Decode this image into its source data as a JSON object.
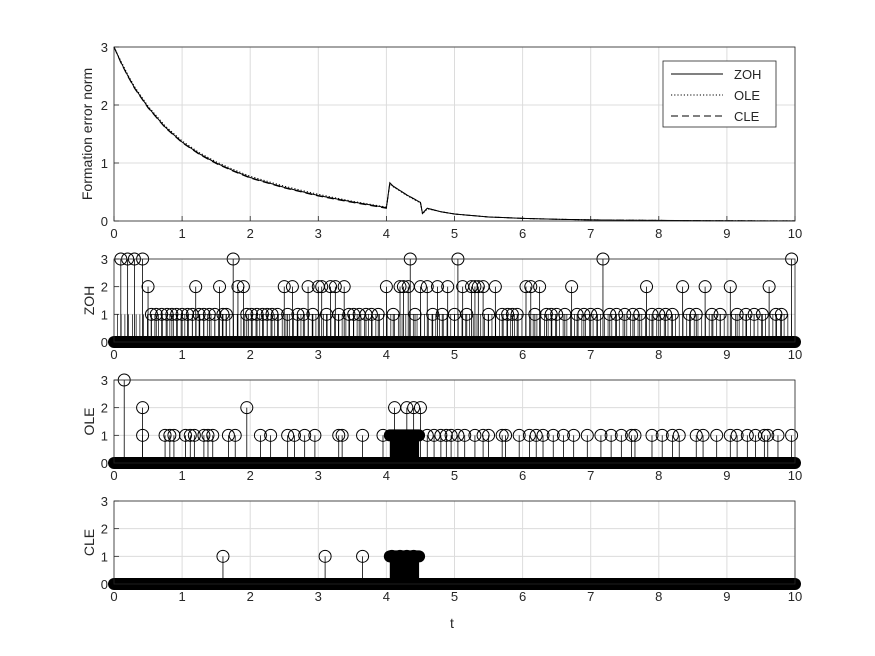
{
  "figure": {
    "xlabel": "t",
    "colors": {
      "axis": "#262626",
      "grid": "#dcdcdc",
      "line": "#000000",
      "background": "#ffffff"
    }
  },
  "chart_data": [
    {
      "type": "line",
      "ylabel": "Formation error norm",
      "xlim": [
        0,
        10
      ],
      "ylim": [
        0,
        3
      ],
      "xticks": [
        "0",
        "1",
        "2",
        "3",
        "4",
        "5",
        "6",
        "7",
        "8",
        "9",
        "10"
      ],
      "yticks": [
        "0",
        "1",
        "2",
        "3"
      ],
      "grid": true,
      "legend_position": "top-right",
      "series": [
        {
          "name": "ZOH",
          "style": "solid",
          "x": [
            0,
            0.1,
            0.2,
            0.3,
            0.5,
            0.75,
            1,
            1.25,
            1.5,
            1.75,
            2,
            2.5,
            3,
            3.5,
            4,
            4.05,
            4.1,
            4.3,
            4.5,
            4.53,
            4.6,
            4.8,
            5,
            5.5,
            6,
            6.5,
            7,
            7.5,
            8,
            8.5,
            9,
            9.5,
            10
          ],
          "y": [
            3,
            2.74,
            2.51,
            2.3,
            1.96,
            1.62,
            1.36,
            1.16,
            1.0,
            0.87,
            0.75,
            0.58,
            0.44,
            0.33,
            0.23,
            0.66,
            0.6,
            0.45,
            0.32,
            0.13,
            0.22,
            0.16,
            0.12,
            0.07,
            0.045,
            0.03,
            0.02,
            0.014,
            0.01,
            0.006,
            0.004,
            0.003,
            0.002
          ]
        },
        {
          "name": "OLE",
          "style": "dotted",
          "x": [
            0,
            0.1,
            0.2,
            0.3,
            0.5,
            0.75,
            1,
            1.25,
            1.5,
            1.75,
            2,
            2.5,
            3,
            3.5,
            4,
            4.05,
            4.1,
            4.3,
            4.5,
            4.53,
            4.6,
            4.8,
            5,
            5.5,
            6,
            6.5,
            7,
            7.5,
            8,
            8.5,
            9,
            9.5,
            10
          ],
          "y": [
            3,
            2.76,
            2.53,
            2.32,
            1.98,
            1.64,
            1.38,
            1.18,
            1.02,
            0.89,
            0.77,
            0.6,
            0.46,
            0.34,
            0.24,
            0.64,
            0.59,
            0.44,
            0.31,
            0.12,
            0.21,
            0.16,
            0.12,
            0.07,
            0.045,
            0.03,
            0.02,
            0.014,
            0.01,
            0.006,
            0.004,
            0.003,
            0.002
          ]
        },
        {
          "name": "CLE",
          "style": "dashed",
          "x": [
            0,
            0.1,
            0.2,
            0.3,
            0.5,
            0.75,
            1,
            1.25,
            1.5,
            1.75,
            2,
            2.5,
            3,
            3.5,
            4,
            4.05,
            4.1,
            4.3,
            4.5,
            4.53,
            4.6,
            4.8,
            5,
            5.5,
            6,
            6.5,
            7,
            7.5,
            8,
            8.5,
            9,
            9.5,
            10
          ],
          "y": [
            3,
            2.73,
            2.5,
            2.29,
            1.95,
            1.61,
            1.35,
            1.15,
            0.99,
            0.86,
            0.74,
            0.57,
            0.43,
            0.32,
            0.22,
            0.65,
            0.6,
            0.45,
            0.32,
            0.13,
            0.22,
            0.16,
            0.12,
            0.07,
            0.045,
            0.03,
            0.02,
            0.014,
            0.01,
            0.006,
            0.004,
            0.003,
            0.002
          ]
        }
      ]
    },
    {
      "type": "scatter",
      "ylabel": "ZOH",
      "xlim": [
        0,
        10
      ],
      "ylim": [
        0,
        3
      ],
      "xticks": [
        "0",
        "1",
        "2",
        "3",
        "4",
        "5",
        "6",
        "7",
        "8",
        "9",
        "10"
      ],
      "yticks": [
        "0",
        "1",
        "2",
        "3"
      ],
      "grid": true,
      "marker": "stem-circle",
      "baseline_value": 0,
      "baseline_range": [
        0,
        10
      ],
      "baseline_block": [
        4.02,
        4.55
      ],
      "points": [
        [
          0.1,
          3
        ],
        [
          0.2,
          3
        ],
        [
          0.3,
          3
        ],
        [
          0.42,
          3
        ],
        [
          0.5,
          2
        ],
        [
          0.55,
          1
        ],
        [
          0.62,
          1
        ],
        [
          0.7,
          1
        ],
        [
          0.78,
          1
        ],
        [
          0.85,
          1
        ],
        [
          0.92,
          1
        ],
        [
          1.0,
          1
        ],
        [
          1.08,
          1
        ],
        [
          1.15,
          1
        ],
        [
          1.2,
          2
        ],
        [
          1.25,
          1
        ],
        [
          1.32,
          1
        ],
        [
          1.4,
          1
        ],
        [
          1.48,
          1
        ],
        [
          1.55,
          2
        ],
        [
          1.6,
          1
        ],
        [
          1.65,
          1
        ],
        [
          1.75,
          3
        ],
        [
          1.82,
          2
        ],
        [
          1.9,
          2
        ],
        [
          1.95,
          1
        ],
        [
          2.02,
          1
        ],
        [
          2.1,
          1
        ],
        [
          2.18,
          1
        ],
        [
          2.25,
          1
        ],
        [
          2.32,
          1
        ],
        [
          2.4,
          1
        ],
        [
          2.5,
          2
        ],
        [
          2.55,
          1
        ],
        [
          2.62,
          2
        ],
        [
          2.7,
          1
        ],
        [
          2.78,
          1
        ],
        [
          2.85,
          2
        ],
        [
          2.92,
          1
        ],
        [
          3.0,
          2
        ],
        [
          3.05,
          2
        ],
        [
          3.12,
          1
        ],
        [
          3.18,
          2
        ],
        [
          3.25,
          2
        ],
        [
          3.3,
          1
        ],
        [
          3.38,
          2
        ],
        [
          3.45,
          1
        ],
        [
          3.52,
          1
        ],
        [
          3.6,
          1
        ],
        [
          3.7,
          1
        ],
        [
          3.78,
          1
        ],
        [
          3.88,
          1
        ],
        [
          4.0,
          2
        ],
        [
          4.1,
          1
        ],
        [
          4.2,
          2
        ],
        [
          4.25,
          2
        ],
        [
          4.32,
          2
        ],
        [
          4.35,
          3
        ],
        [
          4.42,
          1
        ],
        [
          4.5,
          2
        ],
        [
          4.6,
          2
        ],
        [
          4.68,
          1
        ],
        [
          4.75,
          2
        ],
        [
          4.82,
          1
        ],
        [
          4.9,
          2
        ],
        [
          5.0,
          1
        ],
        [
          5.05,
          3
        ],
        [
          5.12,
          2
        ],
        [
          5.18,
          1
        ],
        [
          5.25,
          2
        ],
        [
          5.3,
          2
        ],
        [
          5.35,
          2
        ],
        [
          5.42,
          2
        ],
        [
          5.5,
          1
        ],
        [
          5.6,
          2
        ],
        [
          5.7,
          1
        ],
        [
          5.78,
          1
        ],
        [
          5.85,
          1
        ],
        [
          5.92,
          1
        ],
        [
          6.05,
          2
        ],
        [
          6.12,
          2
        ],
        [
          6.18,
          1
        ],
        [
          6.25,
          2
        ],
        [
          6.35,
          1
        ],
        [
          6.42,
          1
        ],
        [
          6.5,
          1
        ],
        [
          6.62,
          1
        ],
        [
          6.72,
          2
        ],
        [
          6.8,
          1
        ],
        [
          6.9,
          1
        ],
        [
          7.0,
          1
        ],
        [
          7.1,
          1
        ],
        [
          7.18,
          3
        ],
        [
          7.28,
          1
        ],
        [
          7.38,
          1
        ],
        [
          7.5,
          1
        ],
        [
          7.62,
          1
        ],
        [
          7.72,
          1
        ],
        [
          7.82,
          2
        ],
        [
          7.9,
          1
        ],
        [
          8.0,
          1
        ],
        [
          8.1,
          1
        ],
        [
          8.2,
          1
        ],
        [
          8.35,
          2
        ],
        [
          8.45,
          1
        ],
        [
          8.55,
          1
        ],
        [
          8.68,
          2
        ],
        [
          8.78,
          1
        ],
        [
          8.9,
          1
        ],
        [
          9.05,
          2
        ],
        [
          9.15,
          1
        ],
        [
          9.28,
          1
        ],
        [
          9.4,
          1
        ],
        [
          9.52,
          1
        ],
        [
          9.62,
          2
        ],
        [
          9.72,
          1
        ],
        [
          9.8,
          1
        ],
        [
          9.95,
          3
        ]
      ]
    },
    {
      "type": "scatter",
      "ylabel": "OLE",
      "xlim": [
        0,
        10
      ],
      "ylim": [
        0,
        3
      ],
      "xticks": [
        "0",
        "1",
        "2",
        "3",
        "4",
        "5",
        "6",
        "7",
        "8",
        "9",
        "10"
      ],
      "yticks": [
        "0",
        "1",
        "2",
        "3"
      ],
      "grid": true,
      "marker": "stem-circle",
      "baseline_value": 0,
      "baseline_range": [
        0,
        10
      ],
      "block": {
        "x": [
          4.05,
          4.48
        ],
        "y": 1
      },
      "points": [
        [
          0.15,
          3
        ],
        [
          0.42,
          2
        ],
        [
          0.42,
          1
        ],
        [
          0.75,
          1
        ],
        [
          0.82,
          1
        ],
        [
          0.88,
          1
        ],
        [
          1.05,
          1
        ],
        [
          1.12,
          1
        ],
        [
          1.18,
          1
        ],
        [
          1.32,
          1
        ],
        [
          1.38,
          1
        ],
        [
          1.45,
          1
        ],
        [
          1.68,
          1
        ],
        [
          1.78,
          1
        ],
        [
          1.95,
          2
        ],
        [
          2.15,
          1
        ],
        [
          2.3,
          1
        ],
        [
          2.55,
          1
        ],
        [
          2.65,
          1
        ],
        [
          2.8,
          1
        ],
        [
          2.95,
          1
        ],
        [
          3.3,
          1
        ],
        [
          3.35,
          1
        ],
        [
          3.65,
          1
        ],
        [
          3.95,
          1
        ],
        [
          4.12,
          2
        ],
        [
          4.3,
          2
        ],
        [
          4.4,
          2
        ],
        [
          4.5,
          2
        ],
        [
          4.6,
          1
        ],
        [
          4.7,
          1
        ],
        [
          4.8,
          1
        ],
        [
          4.88,
          1
        ],
        [
          4.95,
          1
        ],
        [
          5.05,
          1
        ],
        [
          5.15,
          1
        ],
        [
          5.3,
          1
        ],
        [
          5.42,
          1
        ],
        [
          5.5,
          1
        ],
        [
          5.7,
          1
        ],
        [
          5.75,
          1
        ],
        [
          5.95,
          1
        ],
        [
          6.1,
          1
        ],
        [
          6.2,
          1
        ],
        [
          6.3,
          1
        ],
        [
          6.45,
          1
        ],
        [
          6.6,
          1
        ],
        [
          6.75,
          1
        ],
        [
          6.95,
          1
        ],
        [
          7.15,
          1
        ],
        [
          7.3,
          1
        ],
        [
          7.45,
          1
        ],
        [
          7.6,
          1
        ],
        [
          7.65,
          1
        ],
        [
          7.9,
          1
        ],
        [
          8.05,
          1
        ],
        [
          8.2,
          1
        ],
        [
          8.3,
          1
        ],
        [
          8.55,
          1
        ],
        [
          8.65,
          1
        ],
        [
          8.85,
          1
        ],
        [
          9.05,
          1
        ],
        [
          9.15,
          1
        ],
        [
          9.3,
          1
        ],
        [
          9.42,
          1
        ],
        [
          9.55,
          1
        ],
        [
          9.6,
          1
        ],
        [
          9.75,
          1
        ],
        [
          9.95,
          1
        ]
      ]
    },
    {
      "type": "scatter",
      "ylabel": "CLE",
      "xlim": [
        0,
        10
      ],
      "ylim": [
        0,
        3
      ],
      "xticks": [
        "0",
        "1",
        "2",
        "3",
        "4",
        "5",
        "6",
        "7",
        "8",
        "9",
        "10"
      ],
      "yticks": [
        "0",
        "1",
        "2",
        "3"
      ],
      "grid": true,
      "marker": "stem-circle",
      "baseline_value": 0,
      "baseline_range": [
        0,
        10
      ],
      "block": {
        "x": [
          4.05,
          4.48
        ],
        "y": 1
      },
      "points": [
        [
          1.6,
          1
        ],
        [
          3.1,
          1
        ],
        [
          3.65,
          1
        ],
        [
          4.08,
          1
        ],
        [
          4.2,
          1
        ],
        [
          4.3,
          1
        ],
        [
          4.4,
          1
        ]
      ]
    }
  ]
}
